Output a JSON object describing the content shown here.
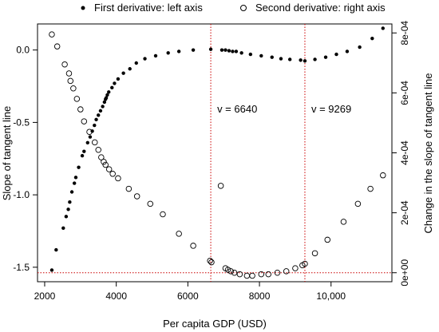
{
  "chart_data": {
    "type": "scatter",
    "xlabel": "Per capita GDP (USD)",
    "ylabel_left": "Slope of tangent line",
    "ylabel_right": "Change in the slope of tangent line",
    "xlim": [
      1800,
      11700
    ],
    "ylim_left": [
      -1.6,
      0.18
    ],
    "ylim_right": [
      -3e-05,
      0.00083
    ],
    "x_ticks": [
      {
        "value": 2000,
        "label": "2000"
      },
      {
        "value": 4000,
        "label": "4000"
      },
      {
        "value": 6000,
        "label": "6000"
      },
      {
        "value": 8000,
        "label": "8000"
      },
      {
        "value": 10000,
        "label": "10,000"
      }
    ],
    "y_ticks_left": [
      {
        "value": 0.0,
        "label": "0.0"
      },
      {
        "value": -0.5,
        "label": "-0.5"
      },
      {
        "value": -1.0,
        "label": "-1.0"
      },
      {
        "value": -1.5,
        "label": "-1.5"
      }
    ],
    "y_ticks_right": [
      {
        "value": 0,
        "label": "0e+00"
      },
      {
        "value": 0.0002,
        "label": "2e-04"
      },
      {
        "value": 0.0004,
        "label": "4e-04"
      },
      {
        "value": 0.0006,
        "label": "6e-04"
      },
      {
        "value": 0.0008,
        "label": "8e-04"
      }
    ],
    "legend": {
      "placement": "top",
      "entries": [
        {
          "label": "First derivative: left axis",
          "marker": "filled-circle"
        },
        {
          "label": "Second derivative: right axis",
          "marker": "open-circle"
        }
      ]
    },
    "reference_lines": {
      "vertical": [
        {
          "x": 6640,
          "label": "v = 6640",
          "label_y": -0.41
        },
        {
          "x": 9269,
          "label": "v = 9269",
          "label_y": -0.41
        }
      ],
      "horizontal_right_axis": 0.0,
      "color": "#cc0000"
    },
    "series": [
      {
        "name": "First derivative: left axis",
        "axis": "left",
        "marker": "filled",
        "x": [
          2200,
          2320,
          2520,
          2600,
          2660,
          2700,
          2760,
          2830,
          2870,
          2950,
          3050,
          3100,
          3200,
          3270,
          3330,
          3390,
          3440,
          3500,
          3560,
          3620,
          3670,
          3700,
          3720,
          3750,
          3790,
          3880,
          3950,
          4050,
          4200,
          4380,
          4560,
          4800,
          5100,
          5450,
          5750,
          6150,
          6640,
          6950,
          7050,
          7150,
          7250,
          7350,
          7500,
          7750,
          8050,
          8350,
          8600,
          8850,
          9150,
          9269,
          9550,
          9850,
          10150,
          10450,
          10800,
          11150,
          11450
        ],
        "y": [
          -1.52,
          -1.38,
          -1.23,
          -1.15,
          -1.1,
          -1.05,
          -0.98,
          -0.92,
          -0.88,
          -0.81,
          -0.73,
          -0.7,
          -0.64,
          -0.6,
          -0.56,
          -0.52,
          -0.48,
          -0.45,
          -0.42,
          -0.39,
          -0.36,
          -0.34,
          -0.33,
          -0.31,
          -0.29,
          -0.26,
          -0.23,
          -0.2,
          -0.16,
          -0.13,
          -0.09,
          -0.06,
          -0.04,
          -0.02,
          -0.01,
          0.0,
          0.005,
          0.0,
          0.0,
          -0.005,
          -0.01,
          -0.01,
          -0.02,
          -0.03,
          -0.04,
          -0.05,
          -0.06,
          -0.065,
          -0.07,
          -0.075,
          -0.065,
          -0.05,
          -0.03,
          -0.01,
          0.02,
          0.08,
          0.15
        ]
      },
      {
        "name": "Second derivative: right axis",
        "axis": "right",
        "marker": "open",
        "x": [
          2200,
          2350,
          2560,
          2680,
          2720,
          2800,
          2900,
          3000,
          3100,
          3250,
          3400,
          3500,
          3580,
          3650,
          3700,
          3800,
          3900,
          4050,
          4350,
          4580,
          4950,
          5300,
          5750,
          6150,
          6620,
          6660,
          6920,
          7050,
          7120,
          7200,
          7300,
          7450,
          7650,
          7800,
          8050,
          8250,
          8500,
          8750,
          9000,
          9200,
          9269,
          9550,
          9900,
          10350,
          10750,
          11100,
          11450
        ],
        "y": [
          0.000795,
          0.000755,
          0.000695,
          0.000665,
          0.00064,
          0.000615,
          0.00058,
          0.000545,
          0.000505,
          0.00047,
          0.000435,
          0.00041,
          0.000385,
          0.00037,
          0.00036,
          0.000345,
          0.00033,
          0.000315,
          0.00028,
          0.000255,
          0.00023,
          0.000195,
          0.00013,
          9e-05,
          4e-05,
          3.5e-05,
          0.00029,
          1.5e-05,
          1e-05,
          5e-06,
          0.0,
          -5e-06,
          -1e-05,
          -1e-05,
          -5e-06,
          -5e-06,
          0.0,
          5e-06,
          1.5e-05,
          2.5e-05,
          3e-05,
          6.5e-05,
          0.00011,
          0.00017,
          0.00023,
          0.00028,
          0.000325
        ]
      }
    ]
  }
}
